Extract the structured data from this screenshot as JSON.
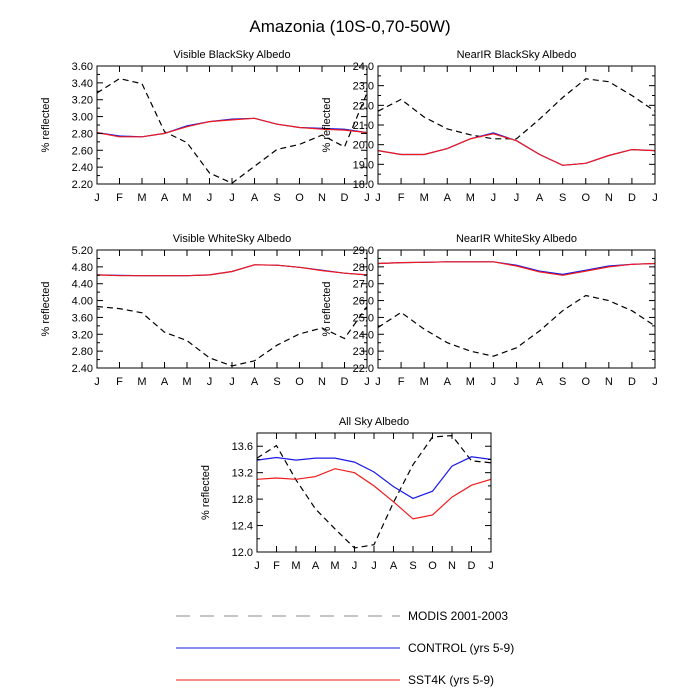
{
  "title": "Amazonia (10S-0,70-50W)",
  "months": [
    "J",
    "F",
    "M",
    "A",
    "M",
    "J",
    "J",
    "A",
    "S",
    "O",
    "N",
    "D",
    "J"
  ],
  "ylabel": "% reflected",
  "colors": {
    "modis": "#000000",
    "control": "#1a1ae6",
    "sst4k": "#f01a1a",
    "overlap": "#6a1aa8"
  },
  "legend": [
    {
      "key": "modis",
      "label": "MODIS 2001-2003",
      "dash": true
    },
    {
      "key": "control",
      "label": "CONTROL (yrs 5-9)",
      "dash": false
    },
    {
      "key": "sst4k",
      "label": "SST4K (yrs 5-9)",
      "dash": false
    }
  ],
  "chart_data": [
    {
      "type": "line",
      "title": "Visible BlackSky Albedo",
      "ylabel": "% reflected",
      "xlabel": "",
      "ylim": [
        2.2,
        3.6
      ],
      "yticks": [
        "2.20",
        "2.40",
        "2.60",
        "2.80",
        "3.00",
        "3.20",
        "3.40",
        "3.60"
      ],
      "categories": [
        "J",
        "F",
        "M",
        "A",
        "M",
        "J",
        "J",
        "A",
        "S",
        "O",
        "N",
        "D",
        "J"
      ],
      "series": [
        {
          "name": "MODIS 2001-2003",
          "key": "modis",
          "values": [
            3.28,
            3.45,
            3.39,
            2.82,
            2.69,
            2.33,
            2.21,
            2.41,
            2.61,
            2.67,
            2.78,
            2.64,
            3.28
          ]
        },
        {
          "name": "CONTROL (yrs 5-9)",
          "key": "control",
          "values": [
            2.81,
            2.77,
            2.76,
            2.8,
            2.89,
            2.94,
            2.97,
            2.98,
            2.91,
            2.87,
            2.86,
            2.85,
            2.81
          ]
        },
        {
          "name": "SST4K (yrs 5-9)",
          "key": "sst4k",
          "values": [
            2.81,
            2.76,
            2.76,
            2.8,
            2.88,
            2.94,
            2.96,
            2.98,
            2.91,
            2.87,
            2.85,
            2.84,
            2.81
          ]
        }
      ]
    },
    {
      "type": "line",
      "title": "NearIR BlackSky Albedo",
      "ylabel": "% reflected",
      "xlabel": "",
      "ylim": [
        18.0,
        24.0
      ],
      "yticks": [
        "18.0",
        "19.0",
        "20.0",
        "21.0",
        "22.0",
        "23.0",
        "24.0"
      ],
      "categories": [
        "J",
        "F",
        "M",
        "A",
        "M",
        "J",
        "J",
        "A",
        "S",
        "O",
        "N",
        "D",
        "J"
      ],
      "series": [
        {
          "name": "MODIS 2001-2003",
          "key": "modis",
          "values": [
            21.7,
            22.3,
            21.4,
            20.8,
            20.5,
            20.3,
            20.3,
            21.3,
            22.4,
            23.35,
            23.2,
            22.5,
            21.7
          ]
        },
        {
          "name": "CONTROL (yrs 5-9)",
          "key": "control",
          "values": [
            19.7,
            19.5,
            19.5,
            19.8,
            20.3,
            20.6,
            20.2,
            19.5,
            18.95,
            19.05,
            19.45,
            19.75,
            19.7
          ]
        },
        {
          "name": "SST4K (yrs 5-9)",
          "key": "sst4k",
          "values": [
            19.7,
            19.5,
            19.5,
            19.8,
            20.3,
            20.55,
            20.2,
            19.5,
            18.95,
            19.05,
            19.45,
            19.75,
            19.7
          ]
        }
      ]
    },
    {
      "type": "line",
      "title": "Visible WhiteSky Albedo",
      "ylabel": "% reflected",
      "xlabel": "",
      "ylim": [
        2.4,
        5.2
      ],
      "yticks": [
        "2.40",
        "2.80",
        "3.20",
        "3.60",
        "4.00",
        "4.40",
        "4.80",
        "5.20"
      ],
      "categories": [
        "J",
        "F",
        "M",
        "A",
        "M",
        "J",
        "J",
        "A",
        "S",
        "O",
        "N",
        "D",
        "J"
      ],
      "series": [
        {
          "name": "MODIS 2001-2003",
          "key": "modis",
          "values": [
            3.86,
            3.81,
            3.71,
            3.25,
            3.05,
            2.64,
            2.45,
            2.57,
            2.94,
            3.21,
            3.35,
            3.1,
            3.86
          ]
        },
        {
          "name": "CONTROL (yrs 5-9)",
          "key": "control",
          "values": [
            4.61,
            4.6,
            4.59,
            4.59,
            4.59,
            4.61,
            4.69,
            4.85,
            4.84,
            4.79,
            4.72,
            4.65,
            4.61
          ]
        },
        {
          "name": "SST4K (yrs 5-9)",
          "key": "sst4k",
          "values": [
            4.61,
            4.59,
            4.59,
            4.59,
            4.59,
            4.61,
            4.69,
            4.85,
            4.84,
            4.79,
            4.71,
            4.65,
            4.61
          ]
        }
      ]
    },
    {
      "type": "line",
      "title": "NearIR WhiteSky Albedo",
      "ylabel": "% reflected",
      "xlabel": "",
      "ylim": [
        22.0,
        29.0
      ],
      "yticks": [
        "22.0",
        "23.0",
        "24.0",
        "25.0",
        "26.0",
        "27.0",
        "28.0",
        "29.0"
      ],
      "categories": [
        "J",
        "F",
        "M",
        "A",
        "M",
        "J",
        "J",
        "A",
        "S",
        "O",
        "N",
        "D",
        "J"
      ],
      "series": [
        {
          "name": "MODIS 2001-2003",
          "key": "modis",
          "values": [
            24.4,
            25.3,
            24.3,
            23.5,
            23.0,
            22.7,
            23.2,
            24.2,
            25.4,
            26.3,
            26.0,
            25.4,
            24.5
          ]
        },
        {
          "name": "CONTROL (yrs 5-9)",
          "key": "control",
          "values": [
            28.2,
            28.25,
            28.27,
            28.3,
            28.3,
            28.3,
            28.1,
            27.75,
            27.55,
            27.8,
            28.05,
            28.15,
            28.2
          ]
        },
        {
          "name": "SST4K (yrs 5-9)",
          "key": "sst4k",
          "values": [
            28.2,
            28.25,
            28.27,
            28.3,
            28.3,
            28.3,
            28.05,
            27.7,
            27.5,
            27.75,
            28.0,
            28.15,
            28.2
          ]
        }
      ]
    },
    {
      "type": "line",
      "title": "All Sky Albedo",
      "ylabel": "% reflected",
      "xlabel": "",
      "ylim": [
        12.0,
        13.8
      ],
      "yticks": [
        "12.0",
        "12.4",
        "12.8",
        "13.2",
        "13.6"
      ],
      "categories": [
        "J",
        "F",
        "M",
        "A",
        "M",
        "J",
        "J",
        "A",
        "S",
        "O",
        "N",
        "D",
        "J"
      ],
      "series": [
        {
          "name": "MODIS 2001-2003",
          "key": "modis",
          "values": [
            13.42,
            13.61,
            13.09,
            12.65,
            12.35,
            12.06,
            12.11,
            12.75,
            13.32,
            13.74,
            13.76,
            13.38,
            13.35
          ]
        },
        {
          "name": "CONTROL (yrs 5-9)",
          "key": "control",
          "values": [
            13.39,
            13.43,
            13.39,
            13.42,
            13.42,
            13.36,
            13.21,
            12.99,
            12.81,
            12.92,
            13.3,
            13.44,
            13.4
          ]
        },
        {
          "name": "SST4K (yrs 5-9)",
          "key": "sst4k",
          "values": [
            13.1,
            13.12,
            13.1,
            13.14,
            13.26,
            13.2,
            13.0,
            12.76,
            12.5,
            12.56,
            12.83,
            13.01,
            13.1
          ]
        }
      ]
    }
  ]
}
